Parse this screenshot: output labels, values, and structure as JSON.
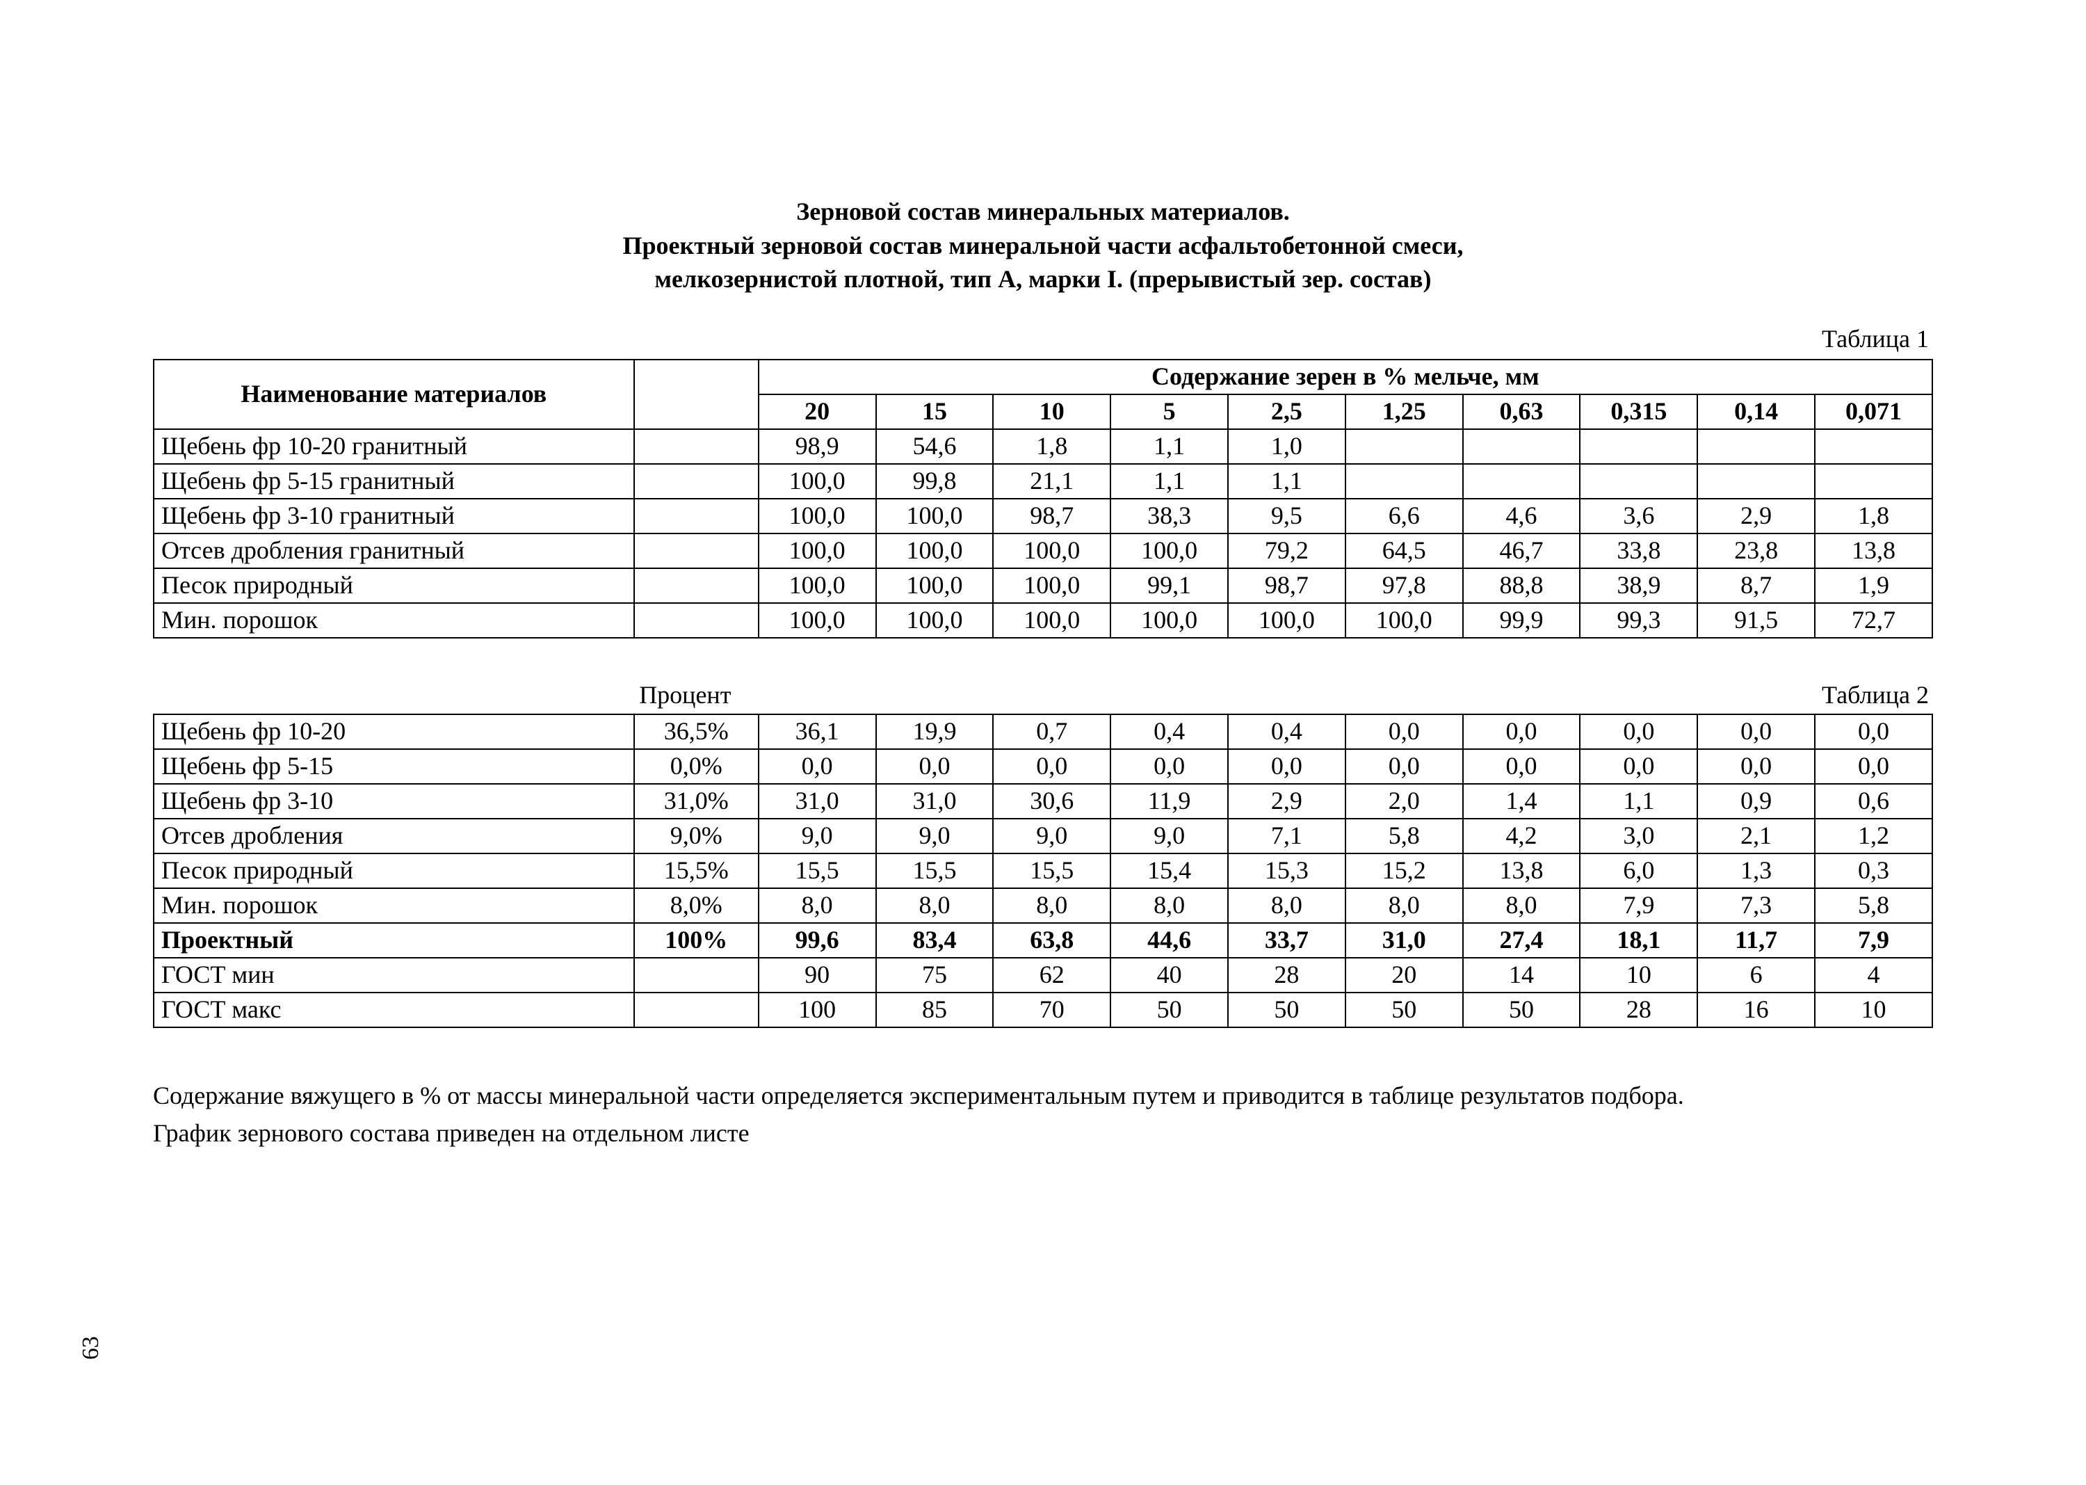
{
  "title": {
    "line1": "Зерновой состав минеральных материалов.",
    "line2": "Проектный зерновой состав минеральной части асфальтобетонной смеси,",
    "line3": "мелкозернистой плотной, тип А, марки I. (прерывистый зер. состав)"
  },
  "table1": {
    "caption": "Таблица 1",
    "header_name": "Наименование материалов",
    "header_group": "Содержание зерен в % мельче, мм",
    "columns": [
      "20",
      "15",
      "10",
      "5",
      "2,5",
      "1,25",
      "0,63",
      "0,315",
      "0,14",
      "0,071"
    ],
    "rows": [
      {
        "name": "Щебень фр 10-20 гранитный",
        "values": [
          "98,9",
          "54,6",
          "1,8",
          "1,1",
          "1,0",
          "",
          "",
          "",
          "",
          ""
        ]
      },
      {
        "name": "Щебень фр   5-15 гранитный",
        "values": [
          "100,0",
          "99,8",
          "21,1",
          "1,1",
          "1,1",
          "",
          "",
          "",
          "",
          ""
        ]
      },
      {
        "name": "Щебень фр   3-10 гранитный",
        "values": [
          "100,0",
          "100,0",
          "98,7",
          "38,3",
          "9,5",
          "6,6",
          "4,6",
          "3,6",
          "2,9",
          "1,8"
        ]
      },
      {
        "name": "Отсев дробления гранитный",
        "values": [
          "100,0",
          "100,0",
          "100,0",
          "100,0",
          "79,2",
          "64,5",
          "46,7",
          "33,8",
          "23,8",
          "13,8"
        ]
      },
      {
        "name": "Песок природный",
        "values": [
          "100,0",
          "100,0",
          "100,0",
          "99,1",
          "98,7",
          "97,8",
          "88,8",
          "38,9",
          "8,7",
          "1,9"
        ]
      },
      {
        "name": "Мин. порошок",
        "values": [
          "100,0",
          "100,0",
          "100,0",
          "100,0",
          "100,0",
          "100,0",
          "99,9",
          "99,3",
          "91,5",
          "72,7"
        ]
      }
    ]
  },
  "table2": {
    "caption": "Таблица 2",
    "percent_label": "Процент",
    "rows": [
      {
        "name": "Щебень фр 10-20",
        "pct": "36,5%",
        "values": [
          "36,1",
          "19,9",
          "0,7",
          "0,4",
          "0,4",
          "0,0",
          "0,0",
          "0,0",
          "0,0",
          "0,0"
        ],
        "bold": false
      },
      {
        "name": "Щебень фр   5-15",
        "pct": "0,0%",
        "values": [
          "0,0",
          "0,0",
          "0,0",
          "0,0",
          "0,0",
          "0,0",
          "0,0",
          "0,0",
          "0,0",
          "0,0"
        ],
        "bold": false
      },
      {
        "name": "Щебень фр   3-10",
        "pct": "31,0%",
        "values": [
          "31,0",
          "31,0",
          "30,6",
          "11,9",
          "2,9",
          "2,0",
          "1,4",
          "1,1",
          "0,9",
          "0,6"
        ],
        "bold": false
      },
      {
        "name": "Отсев дробления",
        "pct": "9,0%",
        "values": [
          "9,0",
          "9,0",
          "9,0",
          "9,0",
          "7,1",
          "5,8",
          "4,2",
          "3,0",
          "2,1",
          "1,2"
        ],
        "bold": false
      },
      {
        "name": "Песок природный",
        "pct": "15,5%",
        "values": [
          "15,5",
          "15,5",
          "15,5",
          "15,4",
          "15,3",
          "15,2",
          "13,8",
          "6,0",
          "1,3",
          "0,3"
        ],
        "bold": false
      },
      {
        "name": "Мин. порошок",
        "pct": "8,0%",
        "values": [
          "8,0",
          "8,0",
          "8,0",
          "8,0",
          "8,0",
          "8,0",
          "8,0",
          "7,9",
          "7,3",
          "5,8"
        ],
        "bold": false
      },
      {
        "name": "Проектный",
        "pct": "100%",
        "values": [
          "99,6",
          "83,4",
          "63,8",
          "44,6",
          "33,7",
          "31,0",
          "27,4",
          "18,1",
          "11,7",
          "7,9"
        ],
        "bold": true
      },
      {
        "name": "ГОСТ мин",
        "pct": "",
        "values": [
          "90",
          "75",
          "62",
          "40",
          "28",
          "20",
          "14",
          "10",
          "6",
          "4"
        ],
        "bold": false
      },
      {
        "name": "ГОСТ макс",
        "pct": "",
        "values": [
          "100",
          "85",
          "70",
          "50",
          "50",
          "50",
          "50",
          "28",
          "16",
          "10"
        ],
        "bold": false
      }
    ]
  },
  "footer": {
    "line1": "Содержание вяжущего в % от массы минеральной части определяется экспериментальным путем и приводится в таблице результатов подбора.",
    "line2": "График зернового состава приведен на отдельном листе"
  },
  "page_number": "63"
}
